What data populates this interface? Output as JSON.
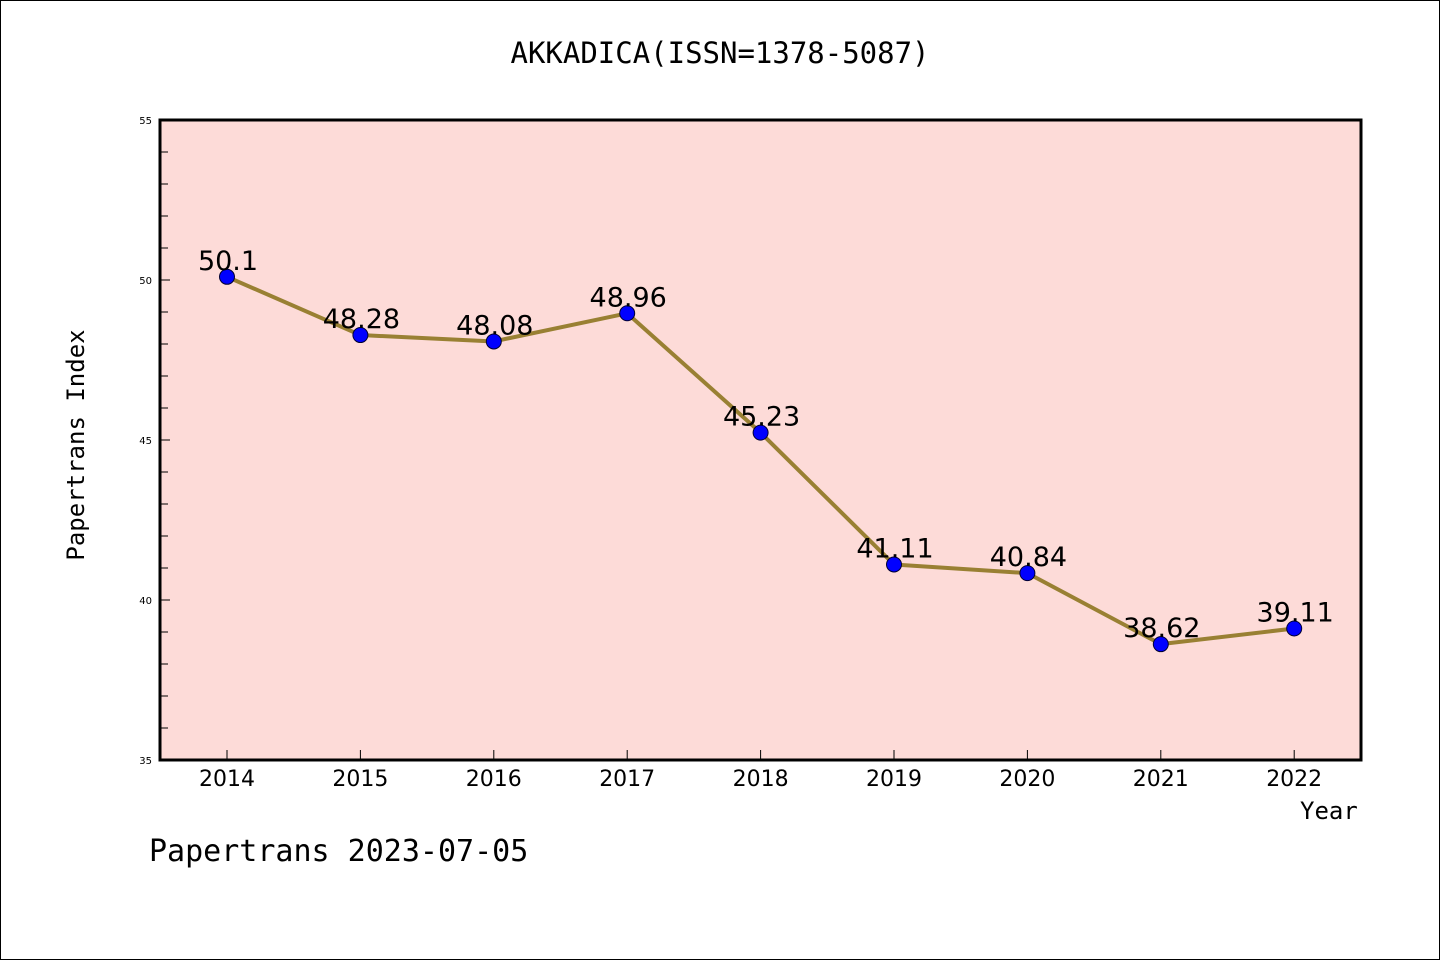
{
  "chart_data": {
    "type": "line",
    "title": "AKKADICA(ISSN=1378-5087)",
    "xlabel": "Year",
    "ylabel": "Papertrans Index",
    "categories": [
      "2014",
      "2015",
      "2016",
      "2017",
      "2018",
      "2019",
      "2020",
      "2021",
      "2022"
    ],
    "series": [
      {
        "values": [
          50.1,
          48.28,
          48.08,
          48.96,
          45.23,
          41.11,
          40.84,
          38.62,
          39.11
        ],
        "labels": [
          "50.1",
          "48.28",
          "48.08",
          "48.96",
          "45.23",
          "41.11",
          "40.84",
          "38.62",
          "39.11"
        ]
      }
    ],
    "ylim": [
      35,
      55
    ],
    "yticks": [
      "35",
      "40",
      "45",
      "50",
      "55"
    ],
    "grid": false,
    "legend": "none",
    "colors": {
      "plot_background": "#fddbd8",
      "line": "#998033",
      "marker": "#0000ff",
      "axis": "#000000"
    }
  },
  "footer": "Papertrans 2023-07-05"
}
